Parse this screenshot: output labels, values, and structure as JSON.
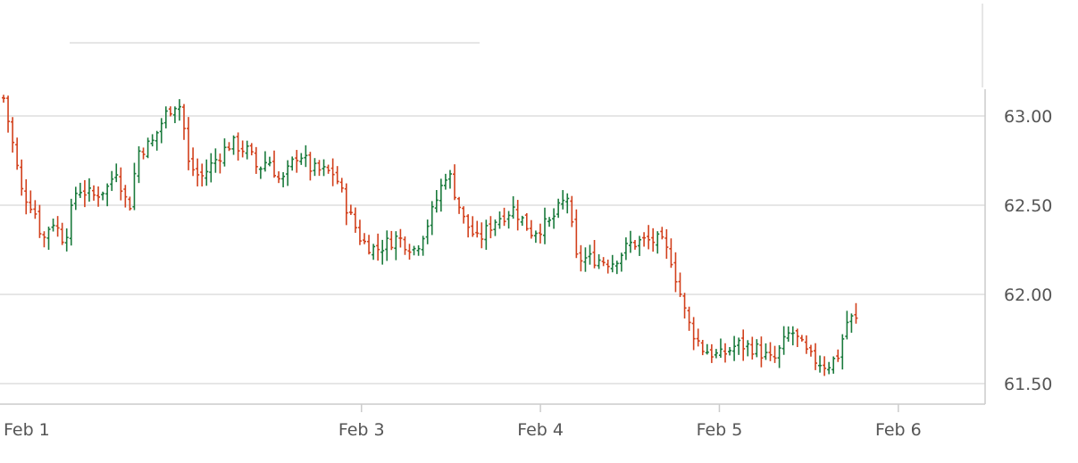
{
  "chart_data": {
    "type": "ohlc",
    "title": "",
    "xlabel": "",
    "ylabel": "",
    "grid": true,
    "ylim": [
      61.38,
      63.63
    ],
    "y_ticks": [
      {
        "value": 63.0,
        "label": "63.00"
      },
      {
        "value": 62.5,
        "label": "62.50"
      },
      {
        "value": 62.0,
        "label": "62.00"
      },
      {
        "value": 61.5,
        "label": "61.50"
      }
    ],
    "x_ticks": [
      {
        "day": 0,
        "label": "Feb 1"
      },
      {
        "day": 2,
        "label": "Feb 3"
      },
      {
        "day": 3,
        "label": "Feb 4"
      },
      {
        "day": 4,
        "label": "Feb 5"
      },
      {
        "day": 5,
        "label": "Feb 6"
      }
    ],
    "x_range_days": [
      0,
      5.47
    ],
    "colors": {
      "up": "#1a7a3c",
      "down": "#d2401c",
      "grid": "#dddddd",
      "axis": "#cccccc",
      "text": "#555555"
    },
    "close_path": [
      [
        0.0,
        63.1
      ],
      [
        0.04,
        62.9
      ],
      [
        0.1,
        62.58
      ],
      [
        0.17,
        62.48
      ],
      [
        0.22,
        62.3
      ],
      [
        0.27,
        62.42
      ],
      [
        0.34,
        62.3
      ],
      [
        0.41,
        62.6
      ],
      [
        0.5,
        62.55
      ],
      [
        0.58,
        62.6
      ],
      [
        0.63,
        62.7
      ],
      [
        0.7,
        62.47
      ],
      [
        0.75,
        62.8
      ],
      [
        0.83,
        62.85
      ],
      [
        0.9,
        63.0
      ],
      [
        0.95,
        63.07
      ],
      [
        1.0,
        63.05
      ],
      [
        1.02,
        62.75
      ],
      [
        1.1,
        62.65
      ],
      [
        1.18,
        62.75
      ],
      [
        1.27,
        62.85
      ],
      [
        1.37,
        62.8
      ],
      [
        1.42,
        62.7
      ],
      [
        1.48,
        62.76
      ],
      [
        1.55,
        62.62
      ],
      [
        1.65,
        62.8
      ],
      [
        1.72,
        62.7
      ],
      [
        1.85,
        62.68
      ],
      [
        1.92,
        62.48
      ],
      [
        2.0,
        62.3
      ],
      [
        2.08,
        62.25
      ],
      [
        2.2,
        62.32
      ],
      [
        2.3,
        62.25
      ],
      [
        2.38,
        62.42
      ],
      [
        2.48,
        62.7
      ],
      [
        2.57,
        62.42
      ],
      [
        2.65,
        62.3
      ],
      [
        2.75,
        62.42
      ],
      [
        2.85,
        62.48
      ],
      [
        2.95,
        62.35
      ],
      [
        3.05,
        62.4
      ],
      [
        3.15,
        62.55
      ],
      [
        3.2,
        62.2
      ],
      [
        3.3,
        62.2
      ],
      [
        3.4,
        62.18
      ],
      [
        3.5,
        62.28
      ],
      [
        3.57,
        62.3
      ],
      [
        3.67,
        62.3
      ],
      [
        3.73,
        62.2
      ],
      [
        3.82,
        61.85
      ],
      [
        3.9,
        61.7
      ],
      [
        4.0,
        61.65
      ],
      [
        4.1,
        61.72
      ],
      [
        4.2,
        61.7
      ],
      [
        4.3,
        61.62
      ],
      [
        4.4,
        61.8
      ],
      [
        4.5,
        61.65
      ],
      [
        4.6,
        61.6
      ],
      [
        4.66,
        61.65
      ],
      [
        4.72,
        61.87
      ],
      [
        4.77,
        61.85
      ]
    ],
    "x_to_time_scale": 1.0
  }
}
